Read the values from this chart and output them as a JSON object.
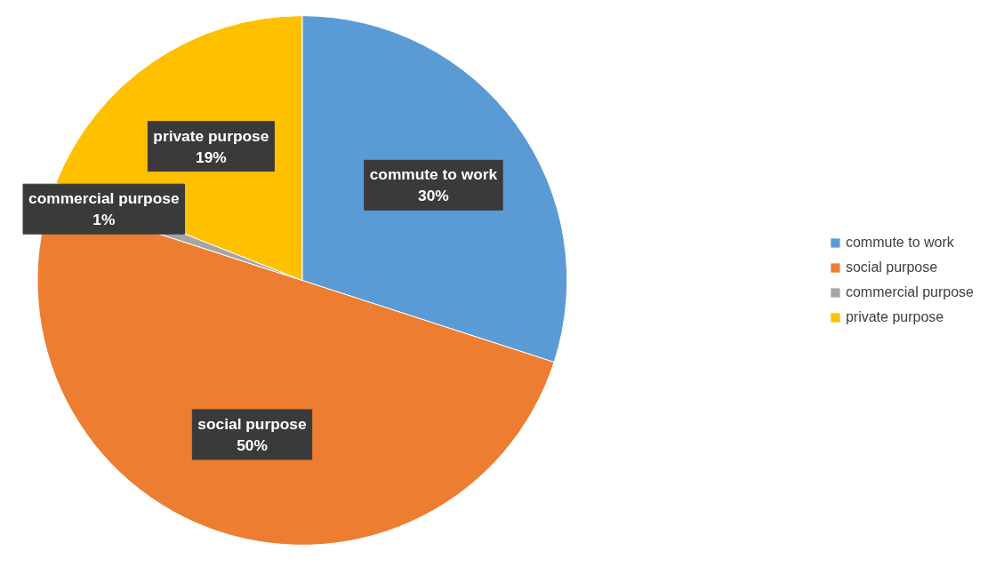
{
  "chart_data": {
    "type": "pie",
    "categories": [
      "commute to work",
      "social purpose",
      "commercial purpose",
      "private purpose"
    ],
    "values": [
      30,
      50,
      1,
      19
    ],
    "colors": [
      "#5b9bd5",
      "#ed7d31",
      "#a5a5a5",
      "#ffc000"
    ],
    "value_labels": [
      "30%",
      "50%",
      "1%",
      "19%"
    ],
    "legend": "right"
  }
}
